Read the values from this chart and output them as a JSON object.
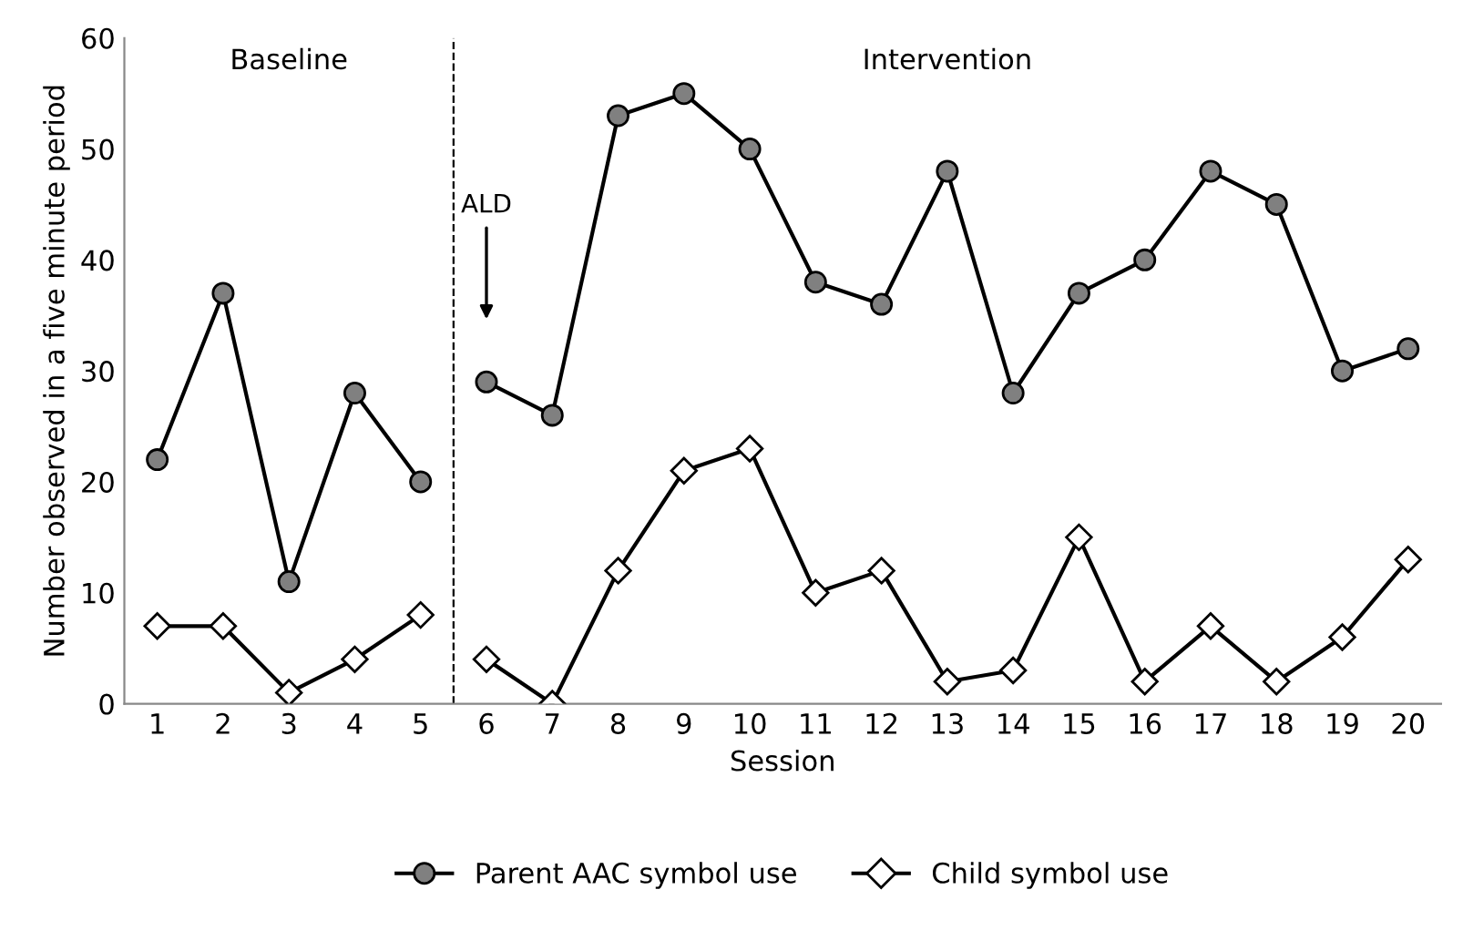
{
  "chart_data": {
    "type": "line",
    "xlabel": "Session",
    "ylabel": "Number observed in a five minute period",
    "x": [
      1,
      2,
      3,
      4,
      5,
      6,
      7,
      8,
      9,
      10,
      11,
      12,
      13,
      14,
      15,
      16,
      17,
      18,
      19,
      20
    ],
    "xlim": [
      0.5,
      20.5
    ],
    "xticks": [
      1,
      2,
      3,
      4,
      5,
      6,
      7,
      8,
      9,
      10,
      11,
      12,
      13,
      14,
      15,
      16,
      17,
      18,
      19,
      20
    ],
    "ylim": [
      0,
      60
    ],
    "yticks": [
      0,
      10,
      20,
      30,
      40,
      50,
      60
    ],
    "series": [
      {
        "name": "Parent AAC symbol use",
        "color": "#808080",
        "marker": "circle",
        "values": [
          22,
          37,
          11,
          28,
          20,
          29,
          26,
          53,
          55,
          50,
          38,
          36,
          48,
          28,
          37,
          40,
          48,
          45,
          30,
          32
        ]
      },
      {
        "name": "Child symbol use",
        "color": "#ffffff",
        "marker": "diamond",
        "values": [
          7,
          7,
          1,
          4,
          8,
          4,
          0,
          12,
          21,
          23,
          10,
          12,
          2,
          3,
          15,
          2,
          7,
          2,
          6,
          13
        ]
      }
    ],
    "ref_lines": [
      {
        "axis": "x",
        "value": 5.5,
        "color": "#000000",
        "line_style": "dashed"
      }
    ],
    "annotations": [
      "Baseline",
      "Intervention",
      "ALD"
    ],
    "legend": "bottom",
    "grid": false,
    "line_style": "solid"
  }
}
